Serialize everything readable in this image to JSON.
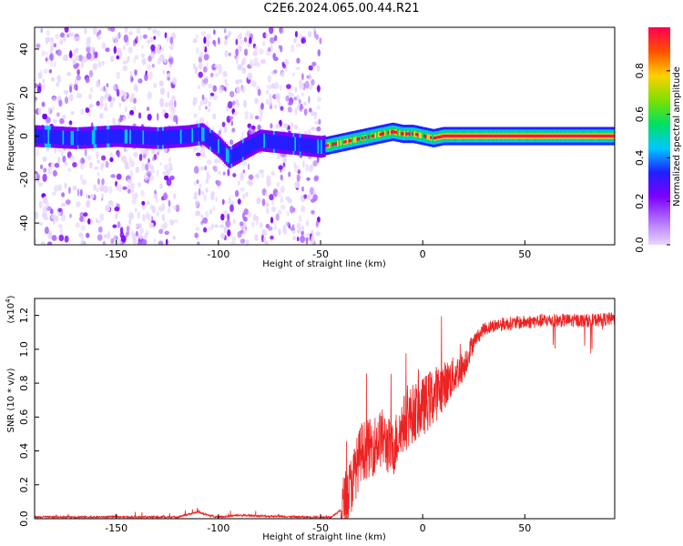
{
  "title": "C2E6.2024.065.00.44.R21",
  "chart_data": [
    {
      "type": "heatmap",
      "xlabel": "Height of straight line (km)",
      "ylabel": "Frequency (Hz)",
      "xlim": [
        -190,
        94
      ],
      "ylim": [
        -50,
        50
      ],
      "x_ticks": [
        -150,
        -100,
        -50,
        0,
        50
      ],
      "y_ticks": [
        -40,
        -20,
        0,
        20,
        40
      ],
      "colorbar": {
        "label": "Normalized spectral amplitude",
        "range": [
          0,
          1
        ],
        "ticks": [
          "0.0",
          "0.2",
          "0.4",
          "0.6",
          "0.8"
        ],
        "colormap": [
          "#e8d8ff",
          "#b070ff",
          "#7b00ff",
          "#2020ff",
          "#00c8ff",
          "#00e060",
          "#80e000",
          "#ffd000",
          "#ff5000",
          "#ff0050"
        ]
      },
      "ridge": {
        "x": [
          -190,
          -170,
          -150,
          -130,
          -115,
          -108,
          -100,
          -95,
          -80,
          -60,
          -50,
          -45,
          -40,
          -35,
          -30,
          -25,
          -20,
          -15,
          -10,
          -5,
          0,
          5,
          10,
          20,
          40,
          60,
          80,
          94
        ],
        "y": [
          0,
          -1,
          0,
          -1,
          0,
          1,
          -5,
          -10,
          -2,
          -4,
          -5,
          -4,
          -3,
          -2,
          -1,
          0,
          1,
          2,
          1,
          1,
          0,
          -1,
          0,
          0,
          0,
          0,
          0,
          0
        ]
      },
      "noise_regions": [
        [
          -190,
          -120
        ],
        [
          -112,
          -50
        ]
      ],
      "grid": false
    },
    {
      "type": "line",
      "xlabel": "Height of straight line (km)",
      "ylabel": "SNR (10 * v/v)",
      "y_multiplier": "(x10",
      "y_multiplier_exp": "4",
      "xlim": [
        -190,
        94
      ],
      "ylim": [
        0,
        1.3
      ],
      "x_ticks": [
        -150,
        -100,
        -50,
        0,
        50
      ],
      "y_ticks": [
        "0.0",
        "0.2",
        "0.4",
        "0.6",
        "0.8",
        "1.0",
        "1.2"
      ],
      "color": "#ee2222",
      "envelope": {
        "x": [
          -190,
          -120,
          -110,
          -105,
          -100,
          -90,
          -60,
          -45,
          -40,
          -35,
          -30,
          -25,
          -20,
          -15,
          -10,
          -5,
          0,
          5,
          10,
          20,
          25,
          30,
          35,
          40,
          50,
          60,
          70,
          80,
          94
        ],
        "y": [
          0.01,
          0.01,
          0.04,
          0.02,
          0.01,
          0.02,
          0.01,
          0.01,
          0.05,
          0.2,
          0.4,
          0.42,
          0.48,
          0.4,
          0.55,
          0.62,
          0.66,
          0.72,
          0.78,
          0.9,
          1.05,
          1.12,
          1.14,
          1.15,
          1.16,
          1.17,
          1.17,
          1.17,
          1.18
        ]
      },
      "grid": false
    }
  ]
}
